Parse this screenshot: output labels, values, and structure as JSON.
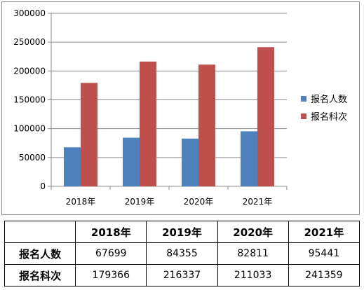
{
  "chart_data": {
    "type": "bar",
    "categories": [
      "2018年",
      "2019年",
      "2020年",
      "2021年"
    ],
    "series": [
      {
        "name": "报名人数",
        "values": [
          67699,
          84355,
          82811,
          95441
        ],
        "color": "#4f81bd"
      },
      {
        "name": "报名科次",
        "values": [
          179366,
          216337,
          211033,
          241359
        ],
        "color": "#c0504d"
      }
    ],
    "ylim": [
      0,
      300000
    ],
    "yticks": [
      "0",
      "50000",
      "100000",
      "150000",
      "200000",
      "250000",
      "300000"
    ],
    "grid": true,
    "legend_position": "right",
    "title": "",
    "xlabel": "",
    "ylabel": ""
  },
  "table": {
    "headers": [
      "",
      "2018年",
      "2019年",
      "2020年",
      "2021年"
    ],
    "rows": [
      {
        "label": "报名人数",
        "cells": [
          "67699",
          "84355",
          "82811",
          "95441"
        ]
      },
      {
        "label": "报名科次",
        "cells": [
          "179366",
          "216337",
          "211033",
          "241359"
        ]
      }
    ]
  }
}
